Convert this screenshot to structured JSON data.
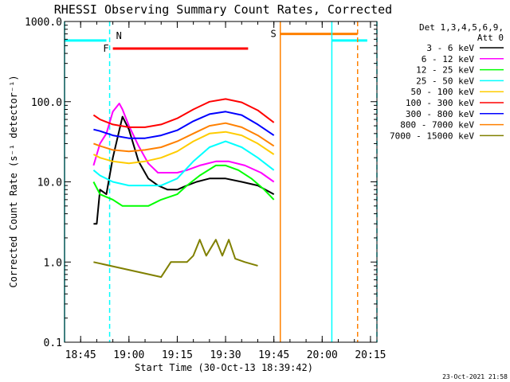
{
  "chart_data": {
    "type": "line",
    "title": "RHESSI Observing Summary Count Rates, Corrected",
    "xlabel": "Start Time (30-Oct-13 18:39:42)",
    "ylabel": "Corrected Count Rate (s⁻¹ detector⁻¹)",
    "y_scale": "log",
    "ylim": [
      0.1,
      1000
    ],
    "xlim": [
      "18:40",
      "20:17"
    ],
    "x_ticks": [
      "18:45",
      "19:00",
      "19:15",
      "19:30",
      "19:45",
      "20:00",
      "20:15"
    ],
    "y_ticks": [
      "0.1",
      "1.0",
      "10.0",
      "100.0",
      "1000.0"
    ],
    "legend_header": [
      "Det 1,3,4,5,6,9,",
      "Att 0"
    ],
    "legend_position": "right",
    "timestamp": "23-Oct-2021 21:58",
    "series": [
      {
        "name": "3 - 6 keV",
        "color": "#000000",
        "points": [
          [
            "18:49",
            3
          ],
          [
            "18:50",
            3
          ],
          [
            "18:51",
            8
          ],
          [
            "18:53",
            7
          ],
          [
            "18:55",
            20
          ],
          [
            "18:58",
            65
          ],
          [
            "19:00",
            45
          ],
          [
            "19:03",
            18
          ],
          [
            "19:06",
            11
          ],
          [
            "19:09",
            9
          ],
          [
            "19:12",
            8
          ],
          [
            "19:15",
            8
          ],
          [
            "19:18",
            9
          ],
          [
            "19:21",
            10
          ],
          [
            "19:25",
            11
          ],
          [
            "19:30",
            11
          ],
          [
            "19:35",
            10
          ],
          [
            "19:40",
            9
          ],
          [
            "19:45",
            7
          ]
        ]
      },
      {
        "name": "6 - 12 keV",
        "color": "#ff00ff",
        "points": [
          [
            "18:49",
            16
          ],
          [
            "18:51",
            30
          ],
          [
            "18:53",
            40
          ],
          [
            "18:55",
            75
          ],
          [
            "18:57",
            95
          ],
          [
            "18:58",
            80
          ],
          [
            "19:00",
            50
          ],
          [
            "19:03",
            28
          ],
          [
            "19:06",
            17
          ],
          [
            "19:09",
            13
          ],
          [
            "19:12",
            13
          ],
          [
            "19:15",
            13
          ],
          [
            "19:18",
            14
          ],
          [
            "19:22",
            16
          ],
          [
            "19:27",
            18
          ],
          [
            "19:31",
            18
          ],
          [
            "19:36",
            16
          ],
          [
            "19:41",
            13
          ],
          [
            "19:45",
            10
          ]
        ]
      },
      {
        "name": "12 - 25 keV",
        "color": "#00ff00",
        "points": [
          [
            "18:49",
            10
          ],
          [
            "18:51",
            7
          ],
          [
            "18:55",
            6
          ],
          [
            "18:58",
            5
          ],
          [
            "19:02",
            5
          ],
          [
            "19:06",
            5
          ],
          [
            "19:10",
            6
          ],
          [
            "19:15",
            7
          ],
          [
            "19:18",
            9
          ],
          [
            "19:22",
            12
          ],
          [
            "19:27",
            16
          ],
          [
            "19:30",
            16
          ],
          [
            "19:34",
            14
          ],
          [
            "19:38",
            11
          ],
          [
            "19:42",
            8
          ],
          [
            "19:45",
            6
          ]
        ]
      },
      {
        "name": "25 - 50 keV",
        "color": "#00ffff",
        "points": [
          [
            "18:49",
            14
          ],
          [
            "18:51",
            12
          ],
          [
            "18:55",
            10
          ],
          [
            "19:00",
            9
          ],
          [
            "19:05",
            9
          ],
          [
            "19:10",
            9
          ],
          [
            "19:15",
            11
          ],
          [
            "19:20",
            18
          ],
          [
            "19:25",
            27
          ],
          [
            "19:30",
            32
          ],
          [
            "19:35",
            27
          ],
          [
            "19:40",
            20
          ],
          [
            "19:45",
            14
          ]
        ]
      },
      {
        "name": "50 - 100 keV",
        "color": "#ffcc00",
        "points": [
          [
            "18:49",
            22
          ],
          [
            "18:51",
            20
          ],
          [
            "18:55",
            18
          ],
          [
            "19:00",
            17
          ],
          [
            "19:05",
            18
          ],
          [
            "19:10",
            20
          ],
          [
            "19:15",
            24
          ],
          [
            "19:20",
            32
          ],
          [
            "19:25",
            40
          ],
          [
            "19:30",
            42
          ],
          [
            "19:35",
            38
          ],
          [
            "19:40",
            30
          ],
          [
            "19:45",
            22
          ]
        ]
      },
      {
        "name": "100 - 300 keV",
        "color": "#ff0000",
        "points": [
          [
            "18:49",
            68
          ],
          [
            "18:51",
            60
          ],
          [
            "18:55",
            52
          ],
          [
            "19:00",
            48
          ],
          [
            "19:05",
            48
          ],
          [
            "19:10",
            52
          ],
          [
            "19:15",
            62
          ],
          [
            "19:20",
            80
          ],
          [
            "19:25",
            100
          ],
          [
            "19:30",
            108
          ],
          [
            "19:35",
            98
          ],
          [
            "19:40",
            78
          ],
          [
            "19:45",
            55
          ]
        ]
      },
      {
        "name": "300 - 800 keV",
        "color": "#0000ff",
        "points": [
          [
            "18:49",
            45
          ],
          [
            "18:51",
            43
          ],
          [
            "18:55",
            38
          ],
          [
            "19:00",
            35
          ],
          [
            "19:05",
            35
          ],
          [
            "19:10",
            38
          ],
          [
            "19:15",
            44
          ],
          [
            "19:20",
            57
          ],
          [
            "19:25",
            70
          ],
          [
            "19:30",
            75
          ],
          [
            "19:35",
            68
          ],
          [
            "19:40",
            52
          ],
          [
            "19:45",
            38
          ]
        ]
      },
      {
        "name": "800 - 7000 keV",
        "color": "#ff8000",
        "points": [
          [
            "18:49",
            30
          ],
          [
            "18:51",
            28
          ],
          [
            "18:55",
            25
          ],
          [
            "19:00",
            24
          ],
          [
            "19:05",
            25
          ],
          [
            "19:10",
            27
          ],
          [
            "19:15",
            32
          ],
          [
            "19:20",
            40
          ],
          [
            "19:25",
            50
          ],
          [
            "19:30",
            54
          ],
          [
            "19:35",
            48
          ],
          [
            "19:40",
            38
          ],
          [
            "19:45",
            28
          ]
        ]
      },
      {
        "name": "7000 - 15000 keV",
        "color": "#808000",
        "points": [
          [
            "18:49",
            1.0
          ],
          [
            "19:10",
            0.65
          ],
          [
            "19:13",
            1.0
          ],
          [
            "19:18",
            1.0
          ],
          [
            "19:20",
            1.2
          ],
          [
            "19:22",
            1.9
          ],
          [
            "19:24",
            1.2
          ],
          [
            "19:27",
            1.9
          ],
          [
            "19:29",
            1.2
          ],
          [
            "19:31",
            1.9
          ],
          [
            "19:33",
            1.1
          ],
          [
            "19:36",
            1.0
          ],
          [
            "19:40",
            0.9
          ]
        ]
      }
    ],
    "annotations": [
      {
        "label": "N",
        "color": "#00ffff",
        "style": "dashed-line",
        "x": "18:54"
      },
      {
        "label": "F",
        "color": "#ff0000",
        "style": "bar",
        "x_start": "18:55",
        "x_end": "19:37",
        "y": 460
      },
      {
        "label": "S",
        "color": "#ff8000",
        "style": "bar",
        "x_start": "19:47",
        "x_end": "20:11",
        "y": 700
      },
      {
        "color": "#00ffff",
        "style": "bar",
        "x_start": "18:40",
        "x_end": "18:53",
        "y": 580
      },
      {
        "color": "#00ffff",
        "style": "bar",
        "x_start": "20:03",
        "x_end": "20:14",
        "y": 580
      },
      {
        "color": "#00ffff",
        "style": "solid-line",
        "x": "18:40"
      },
      {
        "color": "#00ffff",
        "style": "solid-line",
        "x": "20:03"
      },
      {
        "color": "#00ffff",
        "style": "dashed-line",
        "x": "20:17"
      },
      {
        "color": "#ff8000",
        "style": "solid-line",
        "x": "19:47"
      },
      {
        "color": "#ff8000",
        "style": "dashed-line",
        "x": "20:11"
      }
    ]
  }
}
